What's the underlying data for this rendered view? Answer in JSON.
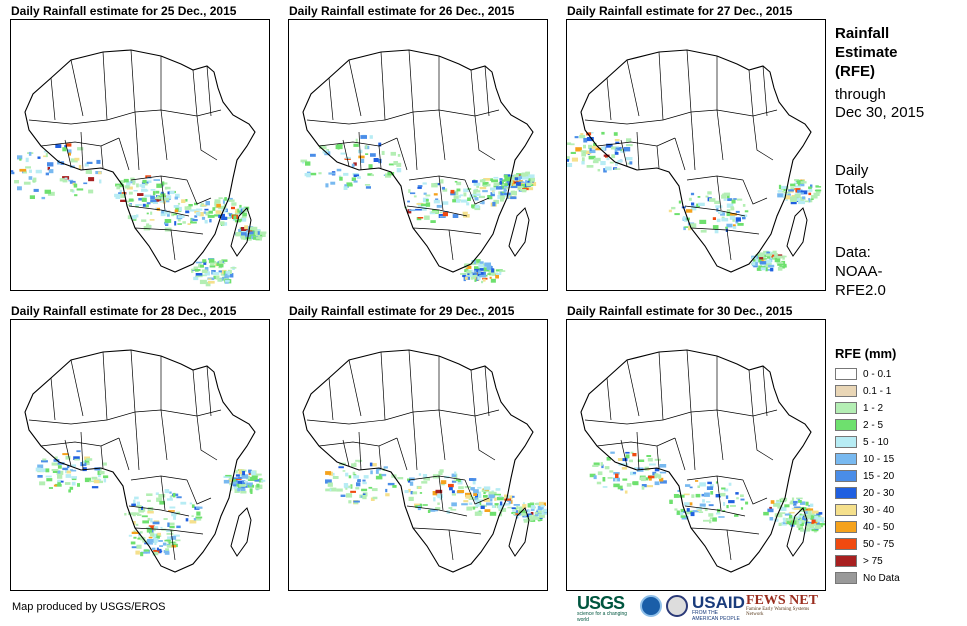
{
  "panels": [
    {
      "title": "Daily Rainfall estimate for 25 Dec., 2015",
      "day": 25
    },
    {
      "title": "Daily Rainfall estimate for 26 Dec., 2015",
      "day": 26
    },
    {
      "title": "Daily Rainfall estimate for 27 Dec., 2015",
      "day": 27
    },
    {
      "title": "Daily Rainfall estimate for 28 Dec., 2015",
      "day": 28
    },
    {
      "title": "Daily Rainfall estimate for 29 Dec., 2015",
      "day": 29
    },
    {
      "title": "Daily Rainfall estimate for 30 Dec., 2015",
      "day": 30
    }
  ],
  "side": {
    "line1": "Rainfall",
    "line2": "Estimate",
    "line3": "(RFE)",
    "line4": "through",
    "line5": "Dec 30, 2015",
    "line6": "Daily",
    "line7": "Totals",
    "line8": "Data:",
    "line9": "NOAA-",
    "line10": "RFE2.0"
  },
  "legend": {
    "title": "RFE (mm)",
    "items": [
      {
        "label": "0 - 0.1",
        "color": "#ffffff"
      },
      {
        "label": "0.1 - 1",
        "color": "#e9d6b6"
      },
      {
        "label": "1 - 2",
        "color": "#b4eeb4"
      },
      {
        "label": "2 - 5",
        "color": "#6ee06e"
      },
      {
        "label": "5 - 10",
        "color": "#b7ecf4"
      },
      {
        "label": "10 - 15",
        "color": "#78b9f0"
      },
      {
        "label": "15 - 20",
        "color": "#4a8de8"
      },
      {
        "label": "20 - 30",
        "color": "#1f5fe0"
      },
      {
        "label": "30 - 40",
        "color": "#f5e08c"
      },
      {
        "label": "40 - 50",
        "color": "#f5a21c"
      },
      {
        "label": "50 - 75",
        "color": "#f04a10"
      },
      {
        "label": "> 75",
        "color": "#a82020"
      },
      {
        "label": "No Data",
        "color": "#999999"
      }
    ]
  },
  "credit": "Map produced by USGS/EROS",
  "logos": {
    "usgs": "USGS",
    "usgs_tagline": "science for a changing world",
    "usaid": "USAID",
    "usaid_tagline": "FROM THE AMERICAN PEOPLE",
    "fews": "FEWS NET",
    "fews_tagline": "Famine Early Warning Systems Network"
  }
}
